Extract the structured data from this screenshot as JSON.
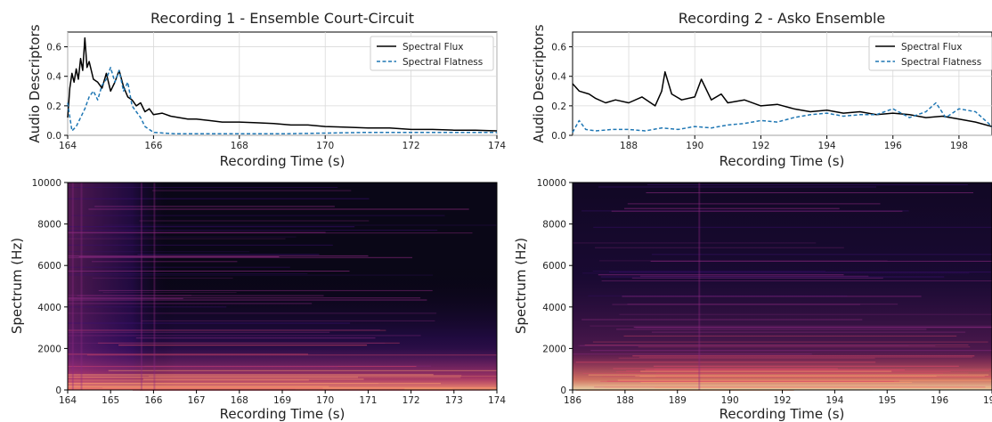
{
  "chart_data": [
    {
      "type": "line",
      "title": "Recording 1 -  Ensemble Court-Circuit",
      "xlabel": "Recording Time (s)",
      "ylabel": "Audio Descriptors",
      "xlim": [
        164,
        174
      ],
      "ylim": [
        0,
        0.7
      ],
      "xticks": [
        "164",
        "166",
        "168",
        "170",
        "172",
        "174"
      ],
      "yticks": [
        "0.0",
        "0.2",
        "0.4",
        "0.6"
      ],
      "grid": true,
      "legend": "top-right",
      "series": [
        {
          "name": "Spectral Flux",
          "color": "#000000",
          "style": "solid",
          "x": [
            164.0,
            164.05,
            164.1,
            164.15,
            164.2,
            164.25,
            164.3,
            164.35,
            164.4,
            164.45,
            164.5,
            164.6,
            164.7,
            164.8,
            164.9,
            165.0,
            165.1,
            165.2,
            165.3,
            165.4,
            165.5,
            165.6,
            165.7,
            165.8,
            165.9,
            166.0,
            166.2,
            166.4,
            166.6,
            166.8,
            167.0,
            167.3,
            167.6,
            168.0,
            168.4,
            168.8,
            169.2,
            169.6,
            170.0,
            170.5,
            171.0,
            171.5,
            172.0,
            172.5,
            173.0,
            173.5,
            174.0
          ],
          "y": [
            0.12,
            0.32,
            0.42,
            0.36,
            0.45,
            0.38,
            0.52,
            0.44,
            0.66,
            0.46,
            0.5,
            0.38,
            0.36,
            0.32,
            0.42,
            0.3,
            0.36,
            0.44,
            0.33,
            0.26,
            0.24,
            0.2,
            0.22,
            0.16,
            0.18,
            0.14,
            0.15,
            0.13,
            0.12,
            0.11,
            0.11,
            0.1,
            0.09,
            0.09,
            0.085,
            0.08,
            0.07,
            0.07,
            0.06,
            0.055,
            0.05,
            0.05,
            0.04,
            0.04,
            0.035,
            0.035,
            0.03
          ]
        },
        {
          "name": "Spectral Flatness",
          "color": "#1f77b4",
          "style": "dashed",
          "x": [
            164.0,
            164.1,
            164.2,
            164.3,
            164.4,
            164.5,
            164.6,
            164.7,
            164.8,
            164.9,
            165.0,
            165.1,
            165.2,
            165.3,
            165.4,
            165.5,
            165.6,
            165.7,
            165.8,
            165.9,
            166.0,
            166.5,
            167.0,
            168.0,
            169.0,
            170.0,
            171.0,
            172.0,
            173.0,
            174.0
          ],
          "y": [
            0.22,
            0.03,
            0.06,
            0.12,
            0.18,
            0.26,
            0.3,
            0.24,
            0.34,
            0.38,
            0.46,
            0.36,
            0.44,
            0.3,
            0.36,
            0.2,
            0.16,
            0.12,
            0.06,
            0.04,
            0.02,
            0.01,
            0.01,
            0.01,
            0.01,
            0.015,
            0.02,
            0.02,
            0.02,
            0.02
          ]
        }
      ]
    },
    {
      "type": "line",
      "title": "Recording 2 - Asko Ensemble",
      "xlabel": "Recording Time (s)",
      "ylabel": "Audio Descriptors",
      "xlim": [
        186.3,
        199
      ],
      "ylim": [
        0,
        0.7
      ],
      "xticks": [
        "188",
        "190",
        "192",
        "194",
        "196",
        "198"
      ],
      "yticks": [
        "0.0",
        "0.2",
        "0.4",
        "0.6"
      ],
      "grid": true,
      "legend": "top-right",
      "series": [
        {
          "name": "Spectral Flux",
          "color": "#000000",
          "style": "solid",
          "x": [
            186.3,
            186.5,
            186.8,
            187.0,
            187.3,
            187.6,
            188.0,
            188.4,
            188.8,
            189.0,
            189.1,
            189.3,
            189.6,
            190.0,
            190.2,
            190.5,
            190.8,
            191.0,
            191.5,
            192.0,
            192.5,
            193.0,
            193.5,
            194.0,
            194.5,
            195.0,
            195.5,
            196.0,
            196.5,
            197.0,
            197.5,
            198.0,
            198.5,
            199.0
          ],
          "y": [
            0.35,
            0.3,
            0.28,
            0.25,
            0.22,
            0.24,
            0.22,
            0.26,
            0.2,
            0.3,
            0.43,
            0.28,
            0.24,
            0.26,
            0.38,
            0.24,
            0.28,
            0.22,
            0.24,
            0.2,
            0.21,
            0.18,
            0.16,
            0.17,
            0.15,
            0.16,
            0.14,
            0.15,
            0.14,
            0.12,
            0.13,
            0.11,
            0.09,
            0.06
          ]
        },
        {
          "name": "Spectral Flatness",
          "color": "#1f77b4",
          "style": "dashed",
          "x": [
            186.3,
            186.5,
            186.7,
            187.0,
            187.5,
            188.0,
            188.5,
            189.0,
            189.5,
            190.0,
            190.5,
            191.0,
            191.5,
            192.0,
            192.5,
            193.0,
            193.5,
            194.0,
            194.5,
            195.0,
            195.5,
            196.0,
            196.5,
            197.0,
            197.3,
            197.6,
            198.0,
            198.5,
            199.0
          ],
          "y": [
            0.02,
            0.1,
            0.04,
            0.03,
            0.04,
            0.04,
            0.03,
            0.05,
            0.04,
            0.06,
            0.05,
            0.07,
            0.08,
            0.1,
            0.09,
            0.12,
            0.14,
            0.15,
            0.13,
            0.14,
            0.14,
            0.18,
            0.12,
            0.16,
            0.22,
            0.12,
            0.18,
            0.16,
            0.06
          ]
        }
      ]
    },
    {
      "type": "heatmap",
      "xlabel": "Recording Time (s)",
      "ylabel": "Spectrum (Hz)",
      "xlim": [
        164,
        174
      ],
      "ylim": [
        0,
        10000
      ],
      "xticks": [
        "164",
        "165",
        "166",
        "167",
        "168",
        "169",
        "170",
        "171",
        "172",
        "173",
        "174"
      ],
      "yticks": [
        "0",
        "2000",
        "4000",
        "6000",
        "8000",
        "10000"
      ],
      "colormap": [
        "#000004",
        "#3b0f70",
        "#8c2981",
        "#de4968",
        "#fe9f6d",
        "#fcfdbf"
      ]
    },
    {
      "type": "heatmap",
      "xlabel": "Recording Time (s)",
      "ylabel": "Spectrum (Hz)",
      "xlim": [
        186,
        199
      ],
      "ylim": [
        0,
        10000
      ],
      "xticks": [
        "186",
        "188",
        "189",
        "190",
        "192",
        "194",
        "195",
        "196",
        "198"
      ],
      "yticks": [
        "0",
        "2000",
        "4000",
        "6000",
        "8000",
        "10000"
      ],
      "colormap": [
        "#000004",
        "#3b0f70",
        "#8c2981",
        "#de4968",
        "#fe9f6d",
        "#fcfdbf"
      ]
    }
  ]
}
